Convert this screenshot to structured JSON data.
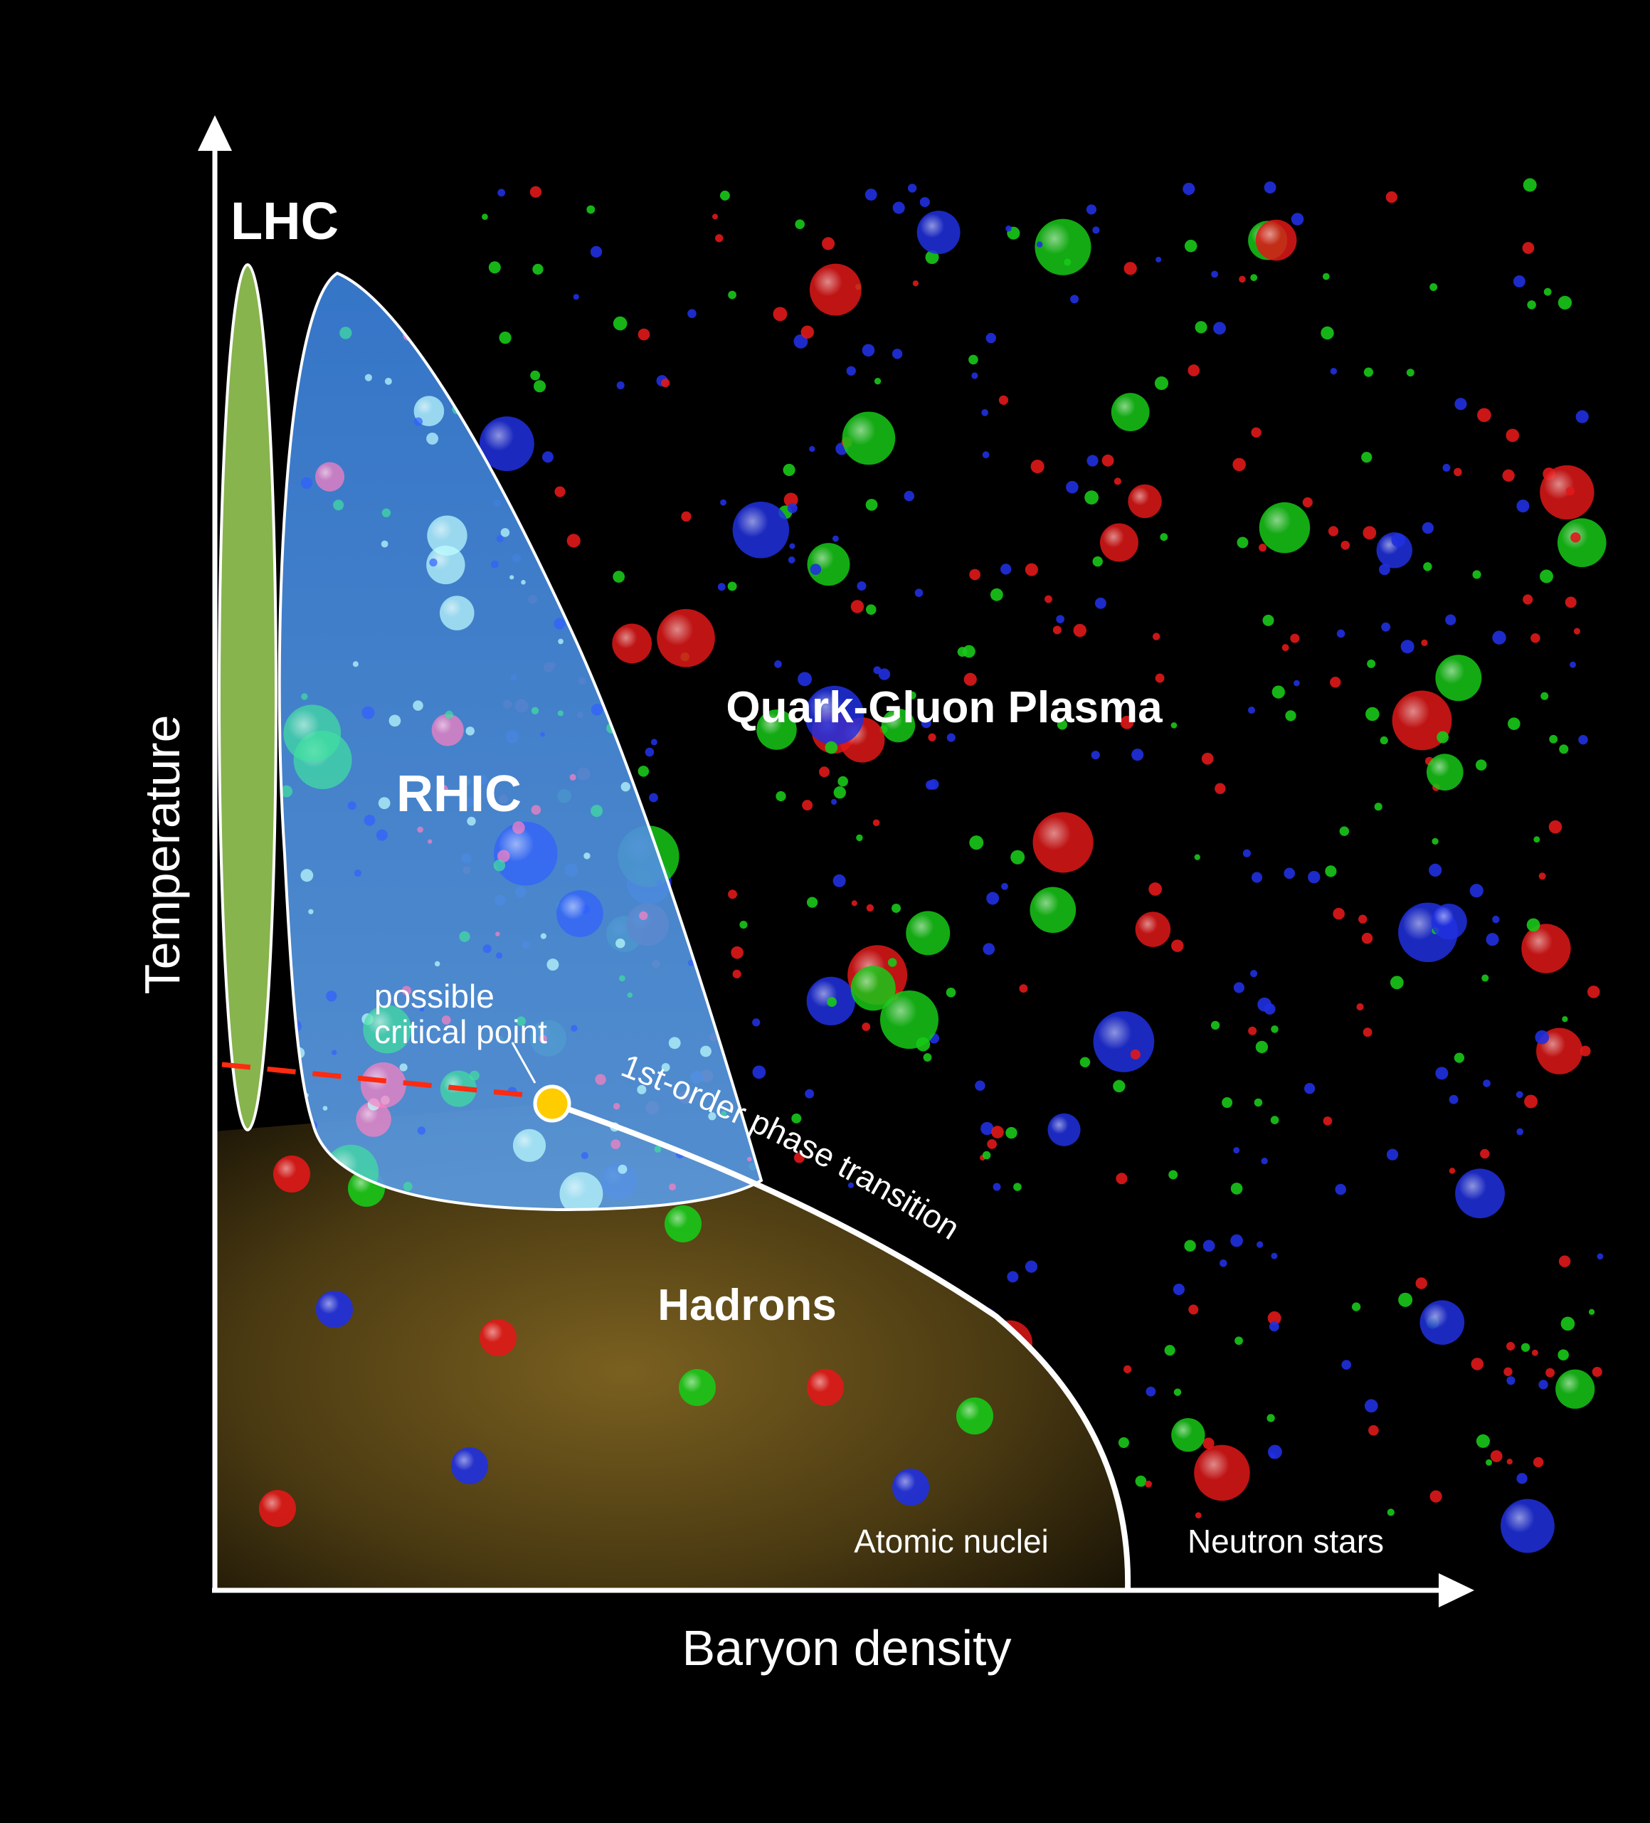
{
  "axes": {
    "x_label": "Baryon density",
    "y_label": "Temperature"
  },
  "regions": {
    "lhc": "LHC",
    "rhic": "RHIC",
    "qgp": "Quark-Gluon Plasma",
    "hadrons": "Hadrons",
    "atomic_nuclei": "Atomic nuclei",
    "neutron_stars": "Neutron stars"
  },
  "annotations": {
    "critical_point_line1": "possible",
    "critical_point_line2": "critical point",
    "phase_transition": "1st-order phase transition"
  },
  "colors": {
    "background": "#000000",
    "lhc": "#9fd45a",
    "rhic": "#3f86d6",
    "hadrons": "#6b5418",
    "crossover_dashed": "#ff2a10",
    "critical_point": "#ffcc00",
    "particles": [
      "#e01818",
      "#18c818",
      "#2030e0"
    ]
  }
}
